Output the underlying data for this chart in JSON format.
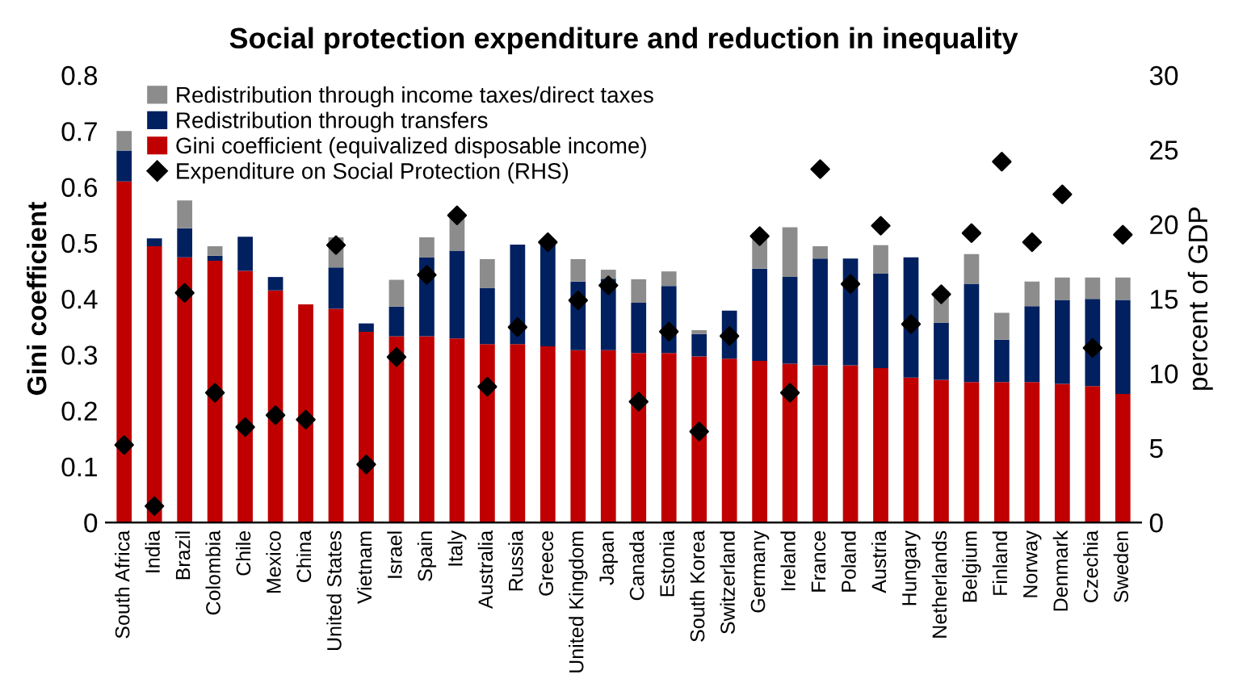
{
  "chart_data": {
    "type": "bar",
    "title": "Social protection expenditure and reduction in inequality",
    "ylabel": "Gini coefficient",
    "y2label": "percent of GDP",
    "categories": [
      "South Africa",
      "India",
      "Brazil",
      "Colombia",
      "Chile",
      "Mexico",
      "China",
      "United States",
      "Vietnam",
      "Israel",
      "Spain",
      "Italy",
      "Australia",
      "Russia",
      "Greece",
      "United Kingdom",
      "Japan",
      "Canada",
      "Estonia",
      "South Korea",
      "Switzerland",
      "Germany",
      "Ireland",
      "France",
      "Poland",
      "Austria",
      "Hungary",
      "Netherlands",
      "Belgium",
      "Finland",
      "Norway",
      "Denmark",
      "Czechia",
      "Sweden"
    ],
    "stacked": true,
    "series": [
      {
        "name": "Gini coefficient (equivalized disposable income)",
        "color": "#c00000",
        "values": [
          0.61,
          0.494,
          0.474,
          0.468,
          0.45,
          0.415,
          0.39,
          0.382,
          0.341,
          0.333,
          0.333,
          0.329,
          0.319,
          0.319,
          0.315,
          0.308,
          0.308,
          0.303,
          0.303,
          0.297,
          0.293,
          0.289,
          0.284,
          0.281,
          0.281,
          0.276,
          0.259,
          0.255,
          0.251,
          0.251,
          0.251,
          0.248,
          0.244,
          0.23
        ]
      },
      {
        "name": "Redistribution through transfers",
        "color": "#002060",
        "values": [
          0.055,
          0.014,
          0.052,
          0.009,
          0.061,
          0.024,
          0,
          0.074,
          0.015,
          0.053,
          0.141,
          0.157,
          0.1,
          0.178,
          0.19,
          0.123,
          0.128,
          0.09,
          0.12,
          0.04,
          0.086,
          0.165,
          0.155,
          0.191,
          0.191,
          0.169,
          0.215,
          0.102,
          0.176,
          0.076,
          0.136,
          0.15,
          0.156,
          0.168
        ]
      },
      {
        "name": "Redistribution through income taxes/direct taxes",
        "color": "#8c8c8c",
        "values": [
          0.035,
          0,
          0.05,
          0.017,
          0,
          0,
          0,
          0.054,
          0,
          0.048,
          0.036,
          0.069,
          0.052,
          0,
          0,
          0.04,
          0.016,
          0.042,
          0.026,
          0.007,
          0,
          0.064,
          0.089,
          0.022,
          0,
          0.051,
          0,
          0.057,
          0.053,
          0.048,
          0.044,
          0.04,
          0.038,
          0.04
        ]
      },
      {
        "name": "Expenditure on Social Protection (RHS)",
        "type": "scatter",
        "axis": "y2",
        "marker": "diamond",
        "color": "#000000",
        "values": [
          5.2,
          1.1,
          15.4,
          8.7,
          6.4,
          7.2,
          6.9,
          18.6,
          3.9,
          11.1,
          16.6,
          20.6,
          9.1,
          13.1,
          18.8,
          14.9,
          15.9,
          8.1,
          12.8,
          6.1,
          12.5,
          19.2,
          8.7,
          23.7,
          16.0,
          19.9,
          13.3,
          15.3,
          19.4,
          24.2,
          18.8,
          22.0,
          11.7,
          19.3
        ]
      }
    ],
    "ylim": [
      0,
      0.8
    ],
    "yticks": [
      0,
      0.1,
      0.2,
      0.3,
      0.4,
      0.5,
      0.6,
      0.7,
      0.8
    ],
    "y2lim": [
      0,
      30
    ],
    "y2ticks": [
      0,
      5,
      10,
      15,
      20,
      25,
      30
    ],
    "grid": false,
    "legend": "top"
  }
}
